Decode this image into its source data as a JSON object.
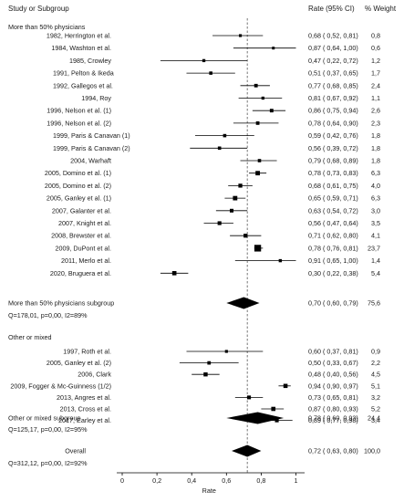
{
  "chart_data": {
    "type": "forest",
    "header": {
      "study": "Study or Subgroup",
      "rate": "Rate (95% CI)",
      "weight": "% Weight"
    },
    "x_axis": {
      "label": "Rate",
      "ticks": [
        "0",
        "0,2",
        "0,4",
        "0,6",
        "0,8",
        "1"
      ],
      "tick_values": [
        0,
        0.2,
        0.4,
        0.6,
        0.8,
        1.0
      ],
      "reference_line": 0.72,
      "range": [
        0,
        1.05
      ]
    },
    "groups": [
      {
        "title": "More than 50% physicians",
        "studies": [
          {
            "label": "1982, Herrington et al.",
            "align": "right",
            "rate": 0.68,
            "lo": 0.52,
            "hi": 0.81,
            "ci_text": "0,68  ( 0,52, 0,81)",
            "weight": 0.8,
            "weight_text": "0,8"
          },
          {
            "label": "1984, Washton et al.",
            "align": "right",
            "rate": 0.87,
            "lo": 0.64,
            "hi": 1.0,
            "ci_text": "0,87  ( 0,64, 1,00)",
            "weight": 0.6,
            "weight_text": "0,6"
          },
          {
            "label": "1985, Crowley",
            "align": "right",
            "rate": 0.47,
            "lo": 0.22,
            "hi": 0.72,
            "ci_text": "0,47  ( 0,22, 0,72)",
            "weight": 1.2,
            "weight_text": "1,2"
          },
          {
            "label": "1991, Pelton & Ikeda",
            "align": "left",
            "rate": 0.51,
            "lo": 0.37,
            "hi": 0.65,
            "ci_text": "0,51  ( 0,37, 0,65)",
            "weight": 1.7,
            "weight_text": "1,7"
          },
          {
            "label": "1992, Gallegos et al.",
            "align": "left",
            "rate": 0.77,
            "lo": 0.68,
            "hi": 0.85,
            "ci_text": "0,77  ( 0,68, 0,85)",
            "weight": 2.4,
            "weight_text": "2,4"
          },
          {
            "label": "1994, Roy",
            "align": "right",
            "rate": 0.81,
            "lo": 0.67,
            "hi": 0.92,
            "ci_text": "0,81  ( 0,67, 0,92)",
            "weight": 1.1,
            "weight_text": "1,1"
          },
          {
            "label": "1996, Nelson et al. (1)",
            "align": "right",
            "rate": 0.86,
            "lo": 0.75,
            "hi": 0.94,
            "ci_text": "0,86  ( 0,75, 0,94)",
            "weight": 2.6,
            "weight_text": "2,6"
          },
          {
            "label": "1996, Nelson et al. (2)",
            "align": "right",
            "rate": 0.78,
            "lo": 0.64,
            "hi": 0.9,
            "ci_text": "0,78  ( 0,64, 0,90)",
            "weight": 2.3,
            "weight_text": "2,3"
          },
          {
            "label": "1999, Paris & Canavan (1)",
            "align": "left",
            "rate": 0.59,
            "lo": 0.42,
            "hi": 0.76,
            "ci_text": "0,59  ( 0,42, 0,76)",
            "weight": 1.8,
            "weight_text": "1,8"
          },
          {
            "label": "1999, Paris & Canavan (2)",
            "align": "left",
            "rate": 0.56,
            "lo": 0.39,
            "hi": 0.72,
            "ci_text": "0,56  ( 0,39, 0,72)",
            "weight": 1.8,
            "weight_text": "1,8"
          },
          {
            "label": "2004, Warhaft",
            "align": "right",
            "rate": 0.79,
            "lo": 0.68,
            "hi": 0.89,
            "ci_text": "0,79  ( 0,68, 0,89)",
            "weight": 1.8,
            "weight_text": "1,8"
          },
          {
            "label": "2005, Domino et al. (1)",
            "align": "right",
            "rate": 0.78,
            "lo": 0.73,
            "hi": 0.83,
            "ci_text": "0,78  ( 0,73, 0,83)",
            "weight": 6.3,
            "weight_text": "6,3"
          },
          {
            "label": "2005, Domino et al. (2)",
            "align": "right",
            "rate": 0.68,
            "lo": 0.61,
            "hi": 0.75,
            "ci_text": "0,68  ( 0,61, 0,75)",
            "weight": 4.0,
            "weight_text": "4,0"
          },
          {
            "label": "2005, Ganley et al. (1)",
            "align": "right",
            "rate": 0.65,
            "lo": 0.59,
            "hi": 0.71,
            "ci_text": "0,65  ( 0,59, 0,71)",
            "weight": 6.3,
            "weight_text": "6,3"
          },
          {
            "label": "2007, Galanter et al.",
            "align": "right",
            "rate": 0.63,
            "lo": 0.54,
            "hi": 0.72,
            "ci_text": "0,63  ( 0,54, 0,72)",
            "weight": 3.0,
            "weight_text": "3,0"
          },
          {
            "label": "2007, Knight et al.",
            "align": "right",
            "rate": 0.56,
            "lo": 0.47,
            "hi": 0.64,
            "ci_text": "0,56  ( 0,47, 0,64)",
            "weight": 3.5,
            "weight_text": "3,5"
          },
          {
            "label": "2008, Brewster et al.",
            "align": "right",
            "rate": 0.71,
            "lo": 0.62,
            "hi": 0.8,
            "ci_text": "0,71  ( 0,62, 0,80)",
            "weight": 4.1,
            "weight_text": "4,1"
          },
          {
            "label": "2009, DuPont et al.",
            "align": "right",
            "rate": 0.78,
            "lo": 0.76,
            "hi": 0.81,
            "ci_text": "0,78  ( 0,76, 0,81)",
            "weight": 23.7,
            "weight_text": "23,7"
          },
          {
            "label": "2011, Merlo et al.",
            "align": "right",
            "rate": 0.91,
            "lo": 0.65,
            "hi": 1.0,
            "ci_text": "0,91  ( 0,65, 1,00)",
            "weight": 1.4,
            "weight_text": "1,4"
          },
          {
            "label": "2020, Bruguera et al.",
            "align": "right",
            "rate": 0.3,
            "lo": 0.22,
            "hi": 0.38,
            "ci_text": "0,30  ( 0,22, 0,38)",
            "weight": 5.4,
            "weight_text": "5,4"
          }
        ],
        "subtotal": {
          "label": "More than 50% physicians subgroup",
          "rate": 0.7,
          "lo": 0.6,
          "hi": 0.79,
          "ci_text": "0,70  ( 0,60, 0,79)",
          "weight_text": "75,6",
          "heterogeneity": "Q=178,01, p=0,00, I2=89%"
        }
      },
      {
        "title": "Other or mixed",
        "studies": [
          {
            "label": "1997, Roth et al.",
            "align": "right",
            "rate": 0.6,
            "lo": 0.37,
            "hi": 0.81,
            "ci_text": "0,60  ( 0,37, 0,81)",
            "weight": 0.9,
            "weight_text": "0,9"
          },
          {
            "label": "2005, Ganley et al. (2)",
            "align": "right",
            "rate": 0.5,
            "lo": 0.33,
            "hi": 0.67,
            "ci_text": "0,50  ( 0,33, 0,67)",
            "weight": 2.2,
            "weight_text": "2,2"
          },
          {
            "label": "2006, Clark",
            "align": "right",
            "rate": 0.48,
            "lo": 0.4,
            "hi": 0.56,
            "ci_text": "0,48  ( 0,40, 0,56)",
            "weight": 4.5,
            "weight_text": "4,5"
          },
          {
            "label": "2009, Fogger & Mc-Guinness (1/2)",
            "align": "right",
            "rate": 0.94,
            "lo": 0.9,
            "hi": 0.97,
            "ci_text": "0,94  ( 0,90, 0,97)",
            "weight": 5.1,
            "weight_text": "5,1"
          },
          {
            "label": "2013, Angres et al.",
            "align": "right",
            "rate": 0.73,
            "lo": 0.65,
            "hi": 0.81,
            "ci_text": "0,73  ( 0,65, 0,81)",
            "weight": 3.2,
            "weight_text": "3,2"
          },
          {
            "label": "2013, Cross et al.",
            "align": "right",
            "rate": 0.87,
            "lo": 0.8,
            "hi": 0.93,
            "ci_text": "0,87  ( 0,80, 0,93)",
            "weight": 5.2,
            "weight_text": "5,2"
          },
          {
            "label": "2017, Earley et al.",
            "align": "right",
            "rate": 0.89,
            "lo": 0.77,
            "hi": 0.98,
            "ci_text": "0,89  ( 0,77, 0,98)",
            "weight": 3.4,
            "weight_text": "3,4"
          }
        ],
        "subtotal": {
          "label": "Other or mixed subgroup",
          "rate": 0.78,
          "lo": 0.6,
          "hi": 0.93,
          "ci_text": "0,78  ( 0,60, 0,93)",
          "weight_text": "24,4",
          "heterogeneity": "Q=125,17, p=0,00, I2=95%"
        }
      }
    ],
    "overall": {
      "label": "Overall",
      "rate": 0.72,
      "lo": 0.63,
      "hi": 0.8,
      "ci_text": "0,72  ( 0,63, 0,80)",
      "weight_text": "100,0",
      "heterogeneity": "Q=312,12, p=0,00, I2=92%"
    }
  }
}
